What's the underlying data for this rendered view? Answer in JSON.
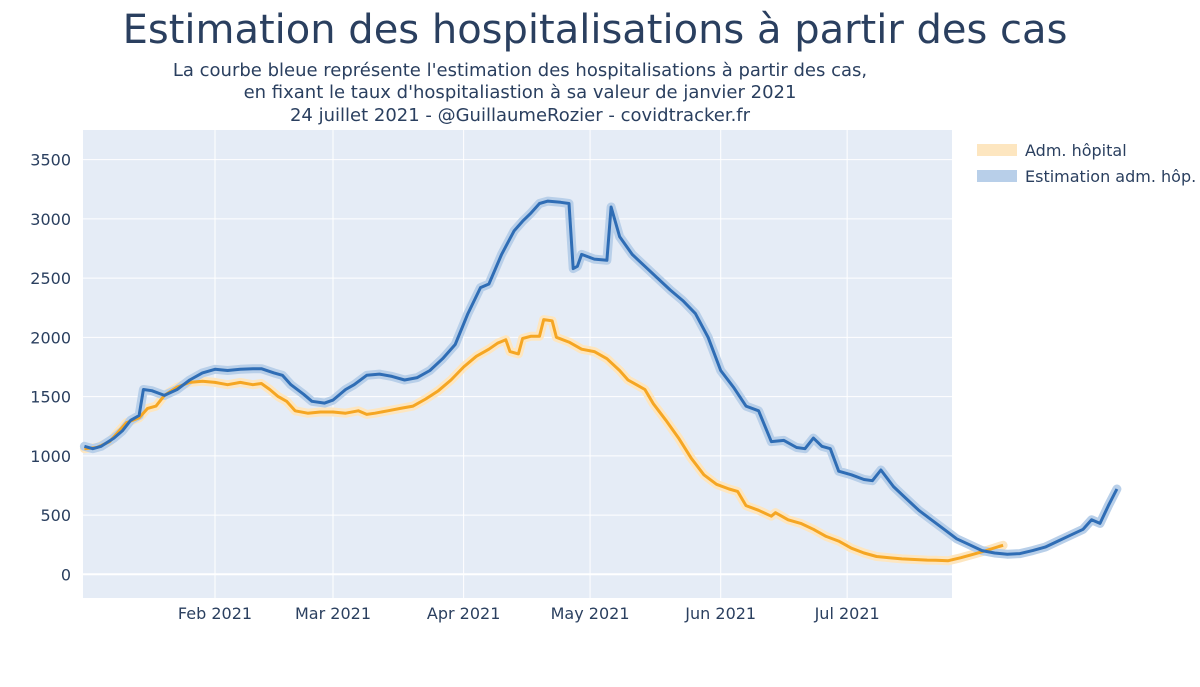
{
  "title": "Estimation des hospitalisations à partir des cas",
  "subtitle_lines": [
    "La courbe bleue représente l'estimation des hospitalisations à partir des cas,",
    "en fixant le taux d'hospitaliastion à sa valeur de janvier 2021",
    "24 juillet 2021 - @GuillaumeRozier - covidtracker.fr"
  ],
  "colors": {
    "plot_bg": "#e5ecf6",
    "grid": "#ffffff",
    "orange": "#f5a623",
    "orange_band": "#fde6c0",
    "blue": "#2f6db5",
    "blue_band": "#b8cfe9"
  },
  "chart_data": {
    "type": "line",
    "x_start": "2021-01-01",
    "x_end": "2021-07-24",
    "ylim": [
      -200,
      3750
    ],
    "yticks": [
      0,
      500,
      1000,
      1500,
      2000,
      2500,
      3000,
      3500
    ],
    "xticks": [
      {
        "date": "2021-02-01",
        "label": "Feb 2021"
      },
      {
        "date": "2021-03-01",
        "label": "Mar 2021"
      },
      {
        "date": "2021-04-01",
        "label": "Apr 2021"
      },
      {
        "date": "2021-05-01",
        "label": "May 2021"
      },
      {
        "date": "2021-06-01",
        "label": "Jun 2021"
      },
      {
        "date": "2021-07-01",
        "label": "Jul 2021"
      }
    ],
    "legend_position": "top-right",
    "grid": true,
    "series": [
      {
        "name": "Adm. hôpital",
        "color": "#f5a623",
        "points": [
          [
            "2021-01-01",
            1060
          ],
          [
            "2021-01-04",
            1070
          ],
          [
            "2021-01-07",
            1120
          ],
          [
            "2021-01-09",
            1200
          ],
          [
            "2021-01-11",
            1280
          ],
          [
            "2021-01-14",
            1320
          ],
          [
            "2021-01-16",
            1400
          ],
          [
            "2021-01-18",
            1420
          ],
          [
            "2021-01-20",
            1510
          ],
          [
            "2021-01-23",
            1580
          ],
          [
            "2021-01-26",
            1620
          ],
          [
            "2021-01-29",
            1630
          ],
          [
            "2021-02-01",
            1620
          ],
          [
            "2021-02-04",
            1600
          ],
          [
            "2021-02-07",
            1620
          ],
          [
            "2021-02-10",
            1600
          ],
          [
            "2021-02-12",
            1610
          ],
          [
            "2021-02-14",
            1560
          ],
          [
            "2021-02-16",
            1500
          ],
          [
            "2021-02-18",
            1460
          ],
          [
            "2021-02-20",
            1380
          ],
          [
            "2021-02-23",
            1360
          ],
          [
            "2021-02-26",
            1370
          ],
          [
            "2021-03-01",
            1370
          ],
          [
            "2021-03-04",
            1360
          ],
          [
            "2021-03-07",
            1380
          ],
          [
            "2021-03-09",
            1350
          ],
          [
            "2021-03-11",
            1360
          ],
          [
            "2021-03-14",
            1380
          ],
          [
            "2021-03-17",
            1400
          ],
          [
            "2021-03-20",
            1420
          ],
          [
            "2021-03-23",
            1480
          ],
          [
            "2021-03-26",
            1550
          ],
          [
            "2021-03-29",
            1640
          ],
          [
            "2021-04-01",
            1750
          ],
          [
            "2021-04-04",
            1840
          ],
          [
            "2021-04-07",
            1900
          ],
          [
            "2021-04-09",
            1950
          ],
          [
            "2021-04-11",
            1980
          ],
          [
            "2021-04-12",
            1880
          ],
          [
            "2021-04-14",
            1860
          ],
          [
            "2021-04-15",
            1990
          ],
          [
            "2021-04-17",
            2010
          ],
          [
            "2021-04-19",
            2010
          ],
          [
            "2021-04-20",
            2150
          ],
          [
            "2021-04-22",
            2140
          ],
          [
            "2021-04-23",
            2000
          ],
          [
            "2021-04-26",
            1960
          ],
          [
            "2021-04-29",
            1900
          ],
          [
            "2021-05-02",
            1880
          ],
          [
            "2021-05-05",
            1820
          ],
          [
            "2021-05-08",
            1720
          ],
          [
            "2021-05-10",
            1640
          ],
          [
            "2021-05-12",
            1600
          ],
          [
            "2021-05-14",
            1560
          ],
          [
            "2021-05-16",
            1440
          ],
          [
            "2021-05-19",
            1300
          ],
          [
            "2021-05-22",
            1150
          ],
          [
            "2021-05-25",
            980
          ],
          [
            "2021-05-28",
            840
          ],
          [
            "2021-05-31",
            760
          ],
          [
            "2021-06-03",
            720
          ],
          [
            "2021-06-05",
            700
          ],
          [
            "2021-06-07",
            580
          ],
          [
            "2021-06-10",
            540
          ],
          [
            "2021-06-13",
            490
          ],
          [
            "2021-06-14",
            520
          ],
          [
            "2021-06-17",
            460
          ],
          [
            "2021-06-20",
            430
          ],
          [
            "2021-06-23",
            380
          ],
          [
            "2021-06-26",
            320
          ],
          [
            "2021-06-29",
            280
          ],
          [
            "2021-07-02",
            220
          ],
          [
            "2021-07-05",
            180
          ],
          [
            "2021-07-08",
            150
          ],
          [
            "2021-07-11",
            140
          ],
          [
            "2021-07-14",
            130
          ],
          [
            "2021-07-17",
            125
          ],
          [
            "2021-07-20",
            120
          ],
          [
            "2021-07-22",
            118
          ],
          [
            "2021-07-25",
            115
          ],
          [
            "2021-07-28",
            140
          ],
          [
            "2021-07-31",
            170
          ],
          [
            "2021-08-03",
            200
          ],
          [
            "2021-08-06",
            235
          ],
          [
            "2021-08-07",
            245
          ]
        ]
      },
      {
        "name": "Estimation adm. hôp.",
        "color": "#2f6db5",
        "points": [
          [
            "2021-01-01",
            1080
          ],
          [
            "2021-01-03",
            1060
          ],
          [
            "2021-01-05",
            1080
          ],
          [
            "2021-01-08",
            1150
          ],
          [
            "2021-01-10",
            1210
          ],
          [
            "2021-01-12",
            1300
          ],
          [
            "2021-01-14",
            1340
          ],
          [
            "2021-01-15",
            1560
          ],
          [
            "2021-01-17",
            1550
          ],
          [
            "2021-01-20",
            1510
          ],
          [
            "2021-01-23",
            1560
          ],
          [
            "2021-01-26",
            1640
          ],
          [
            "2021-01-29",
            1700
          ],
          [
            "2021-02-01",
            1730
          ],
          [
            "2021-02-04",
            1720
          ],
          [
            "2021-02-07",
            1730
          ],
          [
            "2021-02-10",
            1735
          ],
          [
            "2021-02-12",
            1735
          ],
          [
            "2021-02-15",
            1700
          ],
          [
            "2021-02-17",
            1680
          ],
          [
            "2021-02-19",
            1600
          ],
          [
            "2021-02-22",
            1520
          ],
          [
            "2021-02-24",
            1460
          ],
          [
            "2021-02-27",
            1445
          ],
          [
            "2021-03-01",
            1470
          ],
          [
            "2021-03-04",
            1560
          ],
          [
            "2021-03-06",
            1600
          ],
          [
            "2021-03-09",
            1680
          ],
          [
            "2021-03-12",
            1690
          ],
          [
            "2021-03-15",
            1670
          ],
          [
            "2021-03-18",
            1640
          ],
          [
            "2021-03-21",
            1660
          ],
          [
            "2021-03-24",
            1720
          ],
          [
            "2021-03-27",
            1820
          ],
          [
            "2021-03-30",
            1940
          ],
          [
            "2021-04-02",
            2200
          ],
          [
            "2021-04-05",
            2420
          ],
          [
            "2021-04-07",
            2450
          ],
          [
            "2021-04-10",
            2700
          ],
          [
            "2021-04-13",
            2900
          ],
          [
            "2021-04-15",
            2980
          ],
          [
            "2021-04-17",
            3050
          ],
          [
            "2021-04-19",
            3130
          ],
          [
            "2021-04-21",
            3150
          ],
          [
            "2021-04-24",
            3140
          ],
          [
            "2021-04-26",
            3130
          ],
          [
            "2021-04-27",
            2580
          ],
          [
            "2021-04-28",
            2600
          ],
          [
            "2021-04-29",
            2700
          ],
          [
            "2021-05-02",
            2660
          ],
          [
            "2021-05-05",
            2650
          ],
          [
            "2021-05-06",
            3100
          ],
          [
            "2021-05-08",
            2850
          ],
          [
            "2021-05-11",
            2700
          ],
          [
            "2021-05-14",
            2600
          ],
          [
            "2021-05-17",
            2500
          ],
          [
            "2021-05-20",
            2400
          ],
          [
            "2021-05-23",
            2310
          ],
          [
            "2021-05-26",
            2200
          ],
          [
            "2021-05-29",
            2000
          ],
          [
            "2021-06-01",
            1720
          ],
          [
            "2021-06-04",
            1580
          ],
          [
            "2021-06-07",
            1420
          ],
          [
            "2021-06-10",
            1380
          ],
          [
            "2021-06-13",
            1120
          ],
          [
            "2021-06-16",
            1130
          ],
          [
            "2021-06-19",
            1070
          ],
          [
            "2021-06-21",
            1060
          ],
          [
            "2021-06-23",
            1150
          ],
          [
            "2021-06-25",
            1080
          ],
          [
            "2021-06-27",
            1060
          ],
          [
            "2021-06-29",
            870
          ],
          [
            "2021-07-02",
            840
          ],
          [
            "2021-07-05",
            800
          ],
          [
            "2021-07-07",
            790
          ],
          [
            "2021-07-09",
            880
          ],
          [
            "2021-07-12",
            740
          ],
          [
            "2021-07-15",
            640
          ],
          [
            "2021-07-18",
            540
          ],
          [
            "2021-07-21",
            460
          ],
          [
            "2021-07-24",
            380
          ],
          [
            "2021-07-27",
            300
          ],
          [
            "2021-07-30",
            250
          ],
          [
            "2021-08-02",
            200
          ],
          [
            "2021-08-05",
            180
          ],
          [
            "2021-08-08",
            170
          ],
          [
            "2021-08-11",
            175
          ],
          [
            "2021-08-14",
            200
          ],
          [
            "2021-08-17",
            230
          ],
          [
            "2021-08-20",
            280
          ],
          [
            "2021-08-23",
            330
          ],
          [
            "2021-08-26",
            380
          ],
          [
            "2021-08-28",
            460
          ],
          [
            "2021-08-30",
            430
          ],
          [
            "2021-09-01",
            580
          ],
          [
            "2021-09-03",
            720
          ]
        ]
      }
    ]
  }
}
